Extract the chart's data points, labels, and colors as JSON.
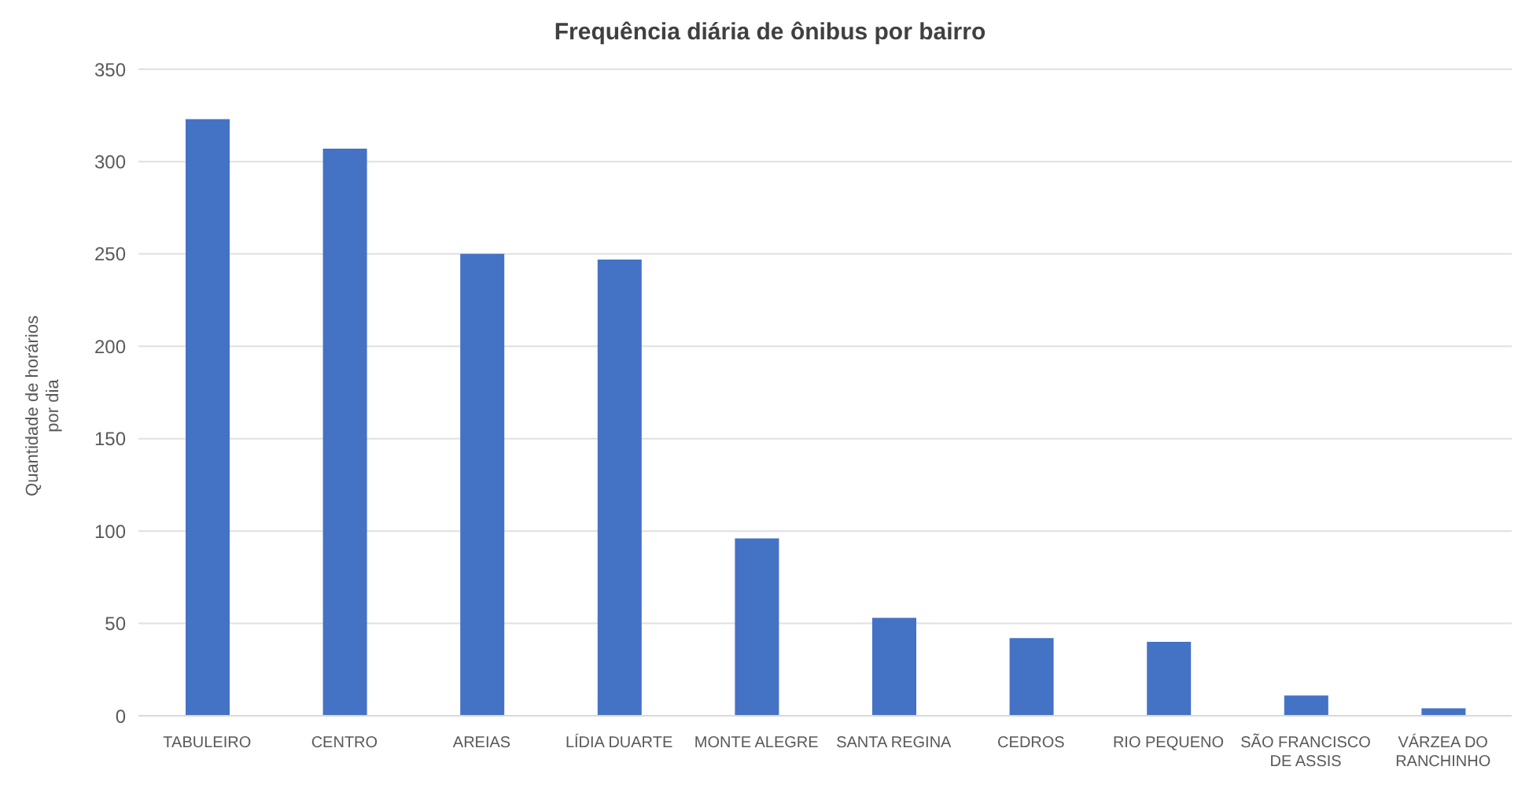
{
  "chart_data": {
    "type": "bar",
    "title": "Frequência diária de ônibus por bairro",
    "ylabel": "Quantidade de horários por dia",
    "categories": [
      "TABULEIRO",
      "CENTRO",
      "AREIAS",
      "LÍDIA DUARTE",
      "MONTE ALEGRE",
      "SANTA REGINA",
      "CEDROS",
      "RIO PEQUENO",
      "SÃO FRANCISCO DE ASSIS",
      "VÁRZEA DO RANCHINHO"
    ],
    "values": [
      323,
      307,
      250,
      247,
      96,
      53,
      42,
      40,
      11,
      4
    ],
    "color": "#4472c4",
    "ylim": [
      0,
      350
    ],
    "yticks": [
      0,
      50,
      100,
      150,
      200,
      250,
      300,
      350
    ],
    "grid": "y"
  }
}
